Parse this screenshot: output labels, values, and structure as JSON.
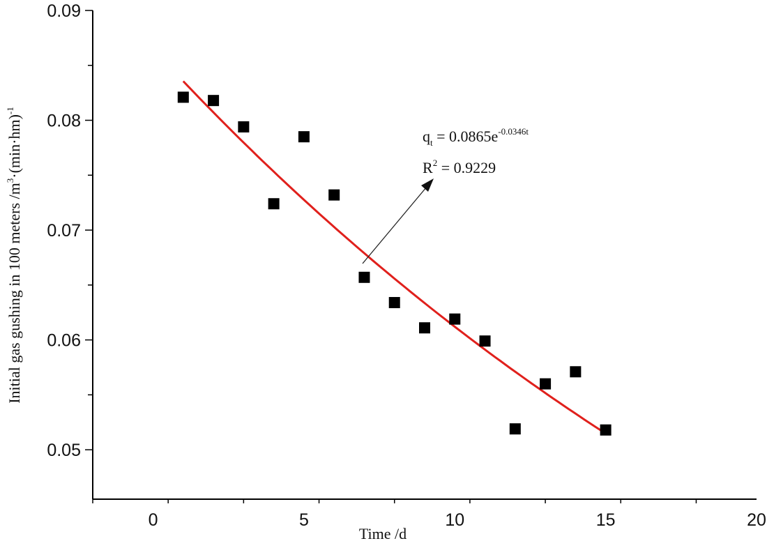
{
  "chart_data": {
    "type": "scatter",
    "xlabel": "Time  /d",
    "ylabel_main": "Initial gas gushing in 100 meters /m",
    "ylabel_sup1": "3",
    "ylabel_mid": "·(min·hm)",
    "ylabel_sup2": "-1",
    "xlim": [
      -2,
      20
    ],
    "ylim": [
      0.0455,
      0.09
    ],
    "x_ticks": [
      0,
      5,
      10,
      15,
      20
    ],
    "x_tick_labels": [
      "0",
      "5",
      "10",
      "15",
      "20"
    ],
    "y_ticks": [
      0.05,
      0.06,
      0.07,
      0.08,
      0.09
    ],
    "y_tick_labels": [
      "0.05",
      "0.06",
      "0.07",
      "0.08",
      "0.09"
    ],
    "grid": false,
    "series": [
      {
        "kind": "scatter",
        "marker": "square",
        "color": "#000000",
        "x": [
          1,
          2,
          3,
          4,
          5,
          6,
          7,
          8,
          9,
          10,
          11,
          12,
          13,
          14,
          15
        ],
        "y": [
          0.0821,
          0.0818,
          0.0794,
          0.0724,
          0.0785,
          0.0732,
          0.0657,
          0.0634,
          0.0611,
          0.0619,
          0.0599,
          0.0519,
          0.056,
          0.0571,
          0.0518
        ]
      },
      {
        "kind": "fit",
        "color": "#e0201c",
        "equation": {
          "a": 0.0865,
          "b": -0.0346
        },
        "x_range": [
          1,
          15
        ]
      }
    ],
    "annotation": {
      "eq_q": "q",
      "eq_sub": "t",
      "eq_body": " = 0.0865e",
      "eq_exp": "-0.0346t",
      "r2_r": "R",
      "r2_sup": "2",
      "r2_body": " = 0.9229"
    }
  }
}
